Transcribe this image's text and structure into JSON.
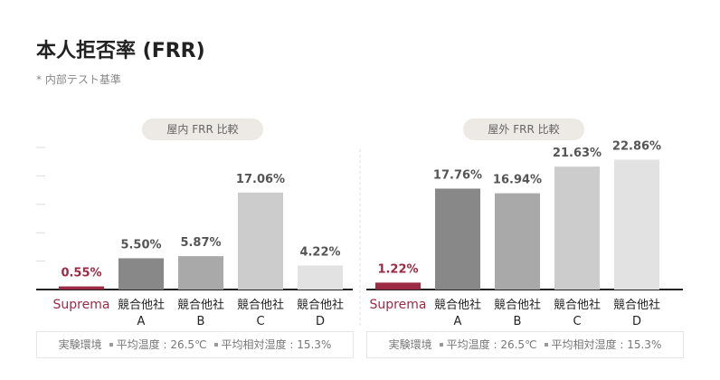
{
  "header": {
    "title": "本人拒否率 (FRR)",
    "note": "* 内部テスト基準"
  },
  "env": {
    "label": "実験環境",
    "temp": "平均温度 : 26.5℃",
    "humidity": "平均相対湿度 : 15.3%"
  },
  "colors": {
    "suprema": "#9c2a45",
    "competitor_a": "#888888",
    "competitor_b": "#a9a9a9",
    "competitor_c": "#cccccc",
    "competitor_d": "#e2e2e2"
  },
  "chart_data": [
    {
      "type": "bar",
      "title": "屋内 FRR 比較",
      "categories": [
        "Suprema",
        "競合他社 A",
        "競合他社 B",
        "競合他社 C",
        "競合他社 D"
      ],
      "category_lines": [
        [
          "Suprema"
        ],
        [
          "競合他社",
          "A"
        ],
        [
          "競合他社",
          "B"
        ],
        [
          "競合他社",
          "C"
        ],
        [
          "競合他社",
          "D"
        ]
      ],
      "values": [
        0.55,
        5.5,
        5.87,
        17.06,
        4.22
      ],
      "value_labels": [
        "0.55%",
        "5.50%",
        "5.87%",
        "17.06%",
        "4.22%"
      ],
      "ylim": [
        0,
        25
      ]
    },
    {
      "type": "bar",
      "title": "屋外 FRR 比較",
      "categories": [
        "Suprema",
        "競合他社 A",
        "競合他社 B",
        "競合他社 C",
        "競合他社 D"
      ],
      "category_lines": [
        [
          "Suprema"
        ],
        [
          "競合他社",
          "A"
        ],
        [
          "競合他社",
          "B"
        ],
        [
          "競合他社",
          "C"
        ],
        [
          "競合他社",
          "D"
        ]
      ],
      "values": [
        1.22,
        17.76,
        16.94,
        21.63,
        22.86
      ],
      "value_labels": [
        "1.22%",
        "17.76%",
        "16.94%",
        "21.63%",
        "22.86%"
      ],
      "ylim": [
        0,
        25
      ]
    }
  ]
}
